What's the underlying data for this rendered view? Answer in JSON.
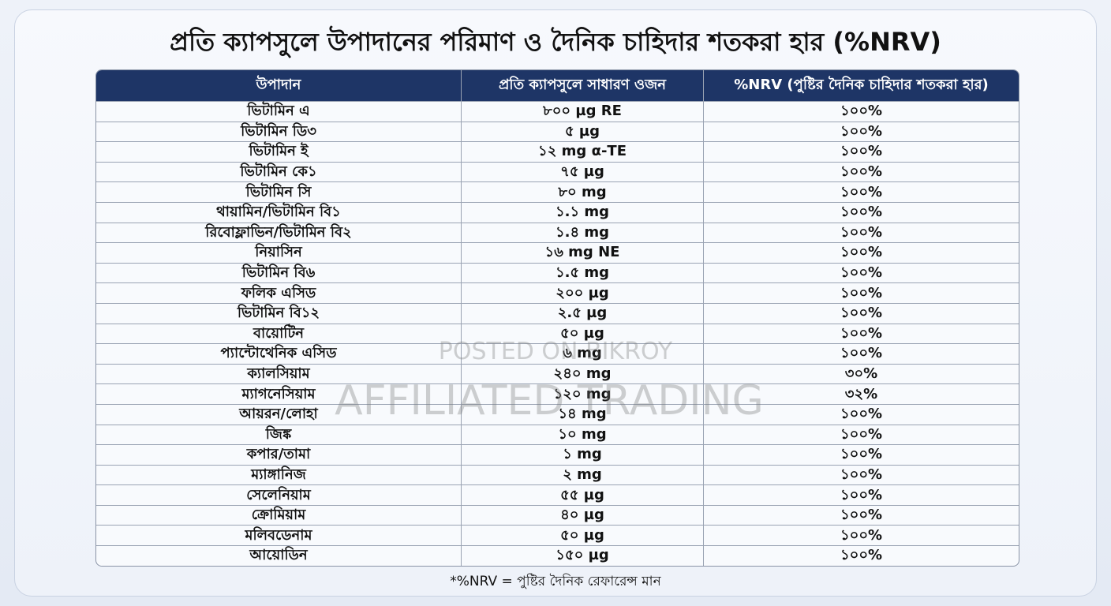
{
  "title": "প্রতি ক্যাপসুলে উপাদানের পরিমাণ ও দৈনিক চাহিদার শতকরা হার (%NRV)",
  "table": {
    "header": [
      "উপাদান",
      "প্রতি ক্যাপসুলে সাধারণ ওজন",
      "%NRV (পুষ্টির দৈনিক চাহিদার শতকরা হার)"
    ],
    "rows": [
      [
        "ভিটামিন এ",
        "৮০০ µg RE",
        "১০০%"
      ],
      [
        "ভিটামিন ডি৩",
        "৫ µg",
        "১০০%"
      ],
      [
        "ভিটামিন ই",
        "১২ mg α-TE",
        "১০০%"
      ],
      [
        "ভিটামিন কে১",
        "৭৫ µg",
        "১০০%"
      ],
      [
        "ভিটামিন সি",
        "৮০ mg",
        "১০০%"
      ],
      [
        "থায়ামিন/ভিটামিন বি১",
        "১.১ mg",
        "১০০%"
      ],
      [
        "রিবোফ্লাভিন/ভিটামিন বি২",
        "১.৪ mg",
        "১০০%"
      ],
      [
        "নিয়াসিন",
        "১৬ mg NE",
        "১০০%"
      ],
      [
        "ভিটামিন বি৬",
        "১.৫ mg",
        "১০০%"
      ],
      [
        "ফলিক এসিড",
        "২০০ µg",
        "১০০%"
      ],
      [
        "ভিটামিন বি১২",
        "২.৫ µg",
        "১০০%"
      ],
      [
        "বায়োটিন",
        "৫০ µg",
        "১০০%"
      ],
      [
        "প্যান্টোথেনিক এসিড",
        "৬ mg",
        "১০০%"
      ],
      [
        "ক্যালসিয়াম",
        "২৪০ mg",
        "৩০%"
      ],
      [
        "ম্যাগনেসিয়াম",
        "১২০ mg",
        "৩২%"
      ],
      [
        "আয়রন/লোহা",
        "১৪ mg",
        "১০০%"
      ],
      [
        "জিঙ্ক",
        "১০ mg",
        "১০০%"
      ],
      [
        "কপার/তামা",
        "১ mg",
        "১০০%"
      ],
      [
        "ম্যাঙ্গানিজ",
        "২ mg",
        "১০০%"
      ],
      [
        "সেলেনিয়াম",
        "৫৫ µg",
        "১০০%"
      ],
      [
        "ক্রোমিয়াম",
        "৪০ µg",
        "১০০%"
      ],
      [
        "মলিবডেনাম",
        "৫০ µg",
        "১০০%"
      ],
      [
        "আয়োডিন",
        "১৫০ µg",
        "১০০%"
      ]
    ]
  },
  "footnote": "*%NRV = পুষ্টির দৈনিক রেফারেন্স মান",
  "watermark": [
    "POSTED ON BIKROY",
    "AFFILIATED TRADING"
  ]
}
